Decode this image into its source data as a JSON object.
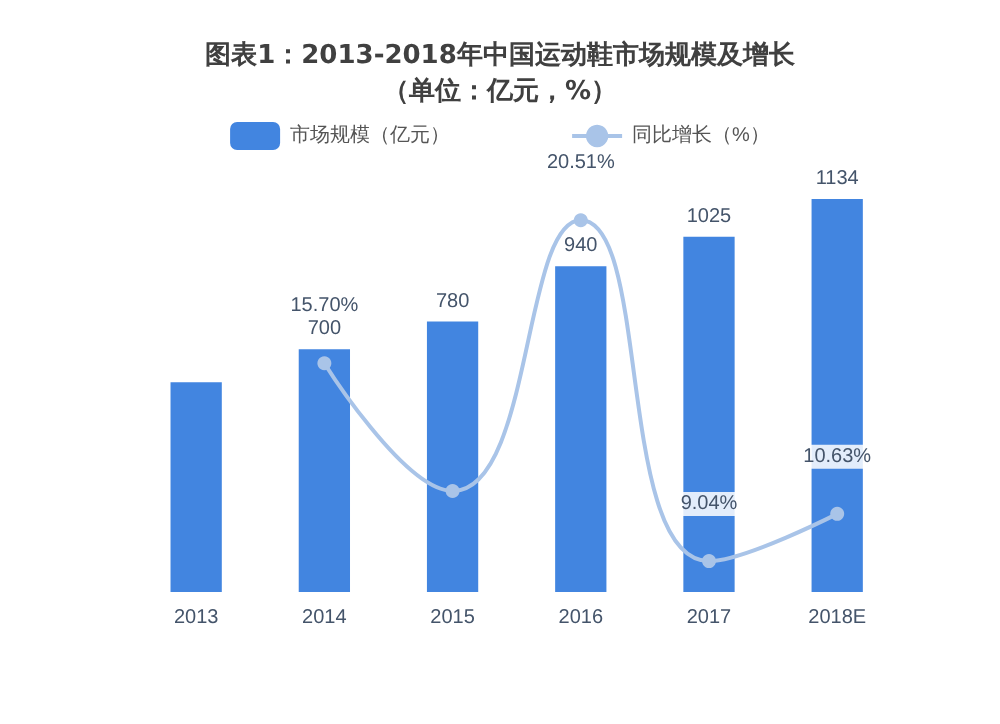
{
  "chart_data": {
    "type": "bar",
    "title": "图表1：2013-2018年中国运动鞋市场规模及增长（单位：亿元，%）",
    "categories": [
      "2013",
      "2014",
      "2015",
      "2016",
      "2017",
      "2018E"
    ],
    "series": [
      {
        "name": "市场规模（亿元）",
        "color": "#4285e0",
        "values": [
          605,
          700,
          780,
          940,
          1025,
          1134
        ],
        "value_labels": [
          null,
          "700",
          "780",
          "940",
          "1025",
          "1134"
        ]
      },
      {
        "name": "同比增长（%）",
        "type": "line",
        "axis": "y2",
        "color": "#a9c4e8",
        "values": [
          null,
          15.7,
          11.4,
          20.51,
          9.04,
          10.63
        ],
        "value_labels": [
          null,
          "15.70%",
          null,
          "20.51%",
          "9.04%",
          "10.63%"
        ]
      }
    ],
    "legend": "top",
    "marker": "circle",
    "grid": false
  }
}
